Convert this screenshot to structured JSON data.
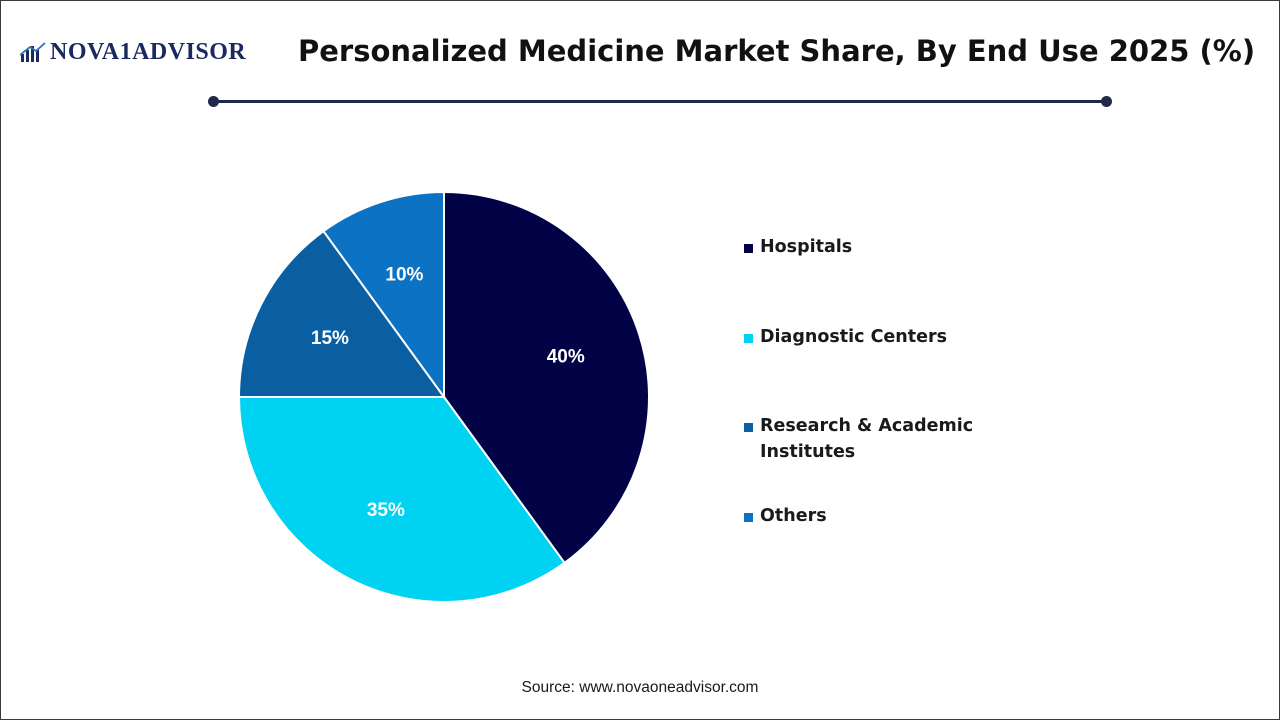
{
  "header": {
    "logo_text": "NOVA1ADVISOR",
    "title": "Personalized Medicine Market Share, By End Use 2025 (%)"
  },
  "chart_data": {
    "type": "pie",
    "title": "Personalized Medicine Market Share, By End Use 2025 (%)",
    "categories": [
      "Hospitals",
      "Diagnostic Centers",
      "Research & Academic Institutes",
      "Others"
    ],
    "values": [
      40,
      35,
      15,
      10
    ],
    "value_labels": [
      "40%",
      "35%",
      "15%",
      "10%"
    ],
    "colors": [
      "#020347",
      "#00d2f2",
      "#0a5fa3",
      "#0b72c4"
    ],
    "start_angle": "12 o'clock",
    "direction": "clockwise",
    "legend_position": "right"
  },
  "legend": {
    "items": [
      {
        "label": "Hospitals",
        "color": "#020347"
      },
      {
        "label": "Diagnostic Centers",
        "color": "#00d2f2"
      },
      {
        "label": "Research & Academic Institutes",
        "color": "#0a5fa3"
      },
      {
        "label": "Others",
        "color": "#0b72c4"
      }
    ]
  },
  "footer": {
    "source": "Source: www.novaoneadvisor.com"
  }
}
